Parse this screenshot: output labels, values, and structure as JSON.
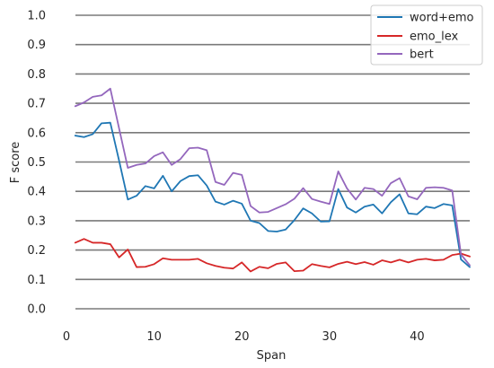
{
  "chart_data": {
    "type": "line",
    "title": "",
    "xlabel": "Span",
    "ylabel": "F score",
    "xlim": [
      0,
      46
    ],
    "ylim": [
      0,
      1.0
    ],
    "xticks": [
      0,
      10,
      20,
      30,
      40
    ],
    "yticks": [
      0.0,
      0.1,
      0.2,
      0.3,
      0.4,
      0.5,
      0.6,
      0.7,
      0.8,
      0.9,
      1.0
    ],
    "xtick_labels": [
      "0",
      "10",
      "20",
      "30",
      "40"
    ],
    "ytick_labels": [
      "0.0",
      "0.1",
      "0.2",
      "0.3",
      "0.4",
      "0.5",
      "0.6",
      "0.7",
      "0.8",
      "0.9",
      "1.0"
    ],
    "grid": "horizontal",
    "legend_position": "top-right",
    "x": [
      1,
      2,
      3,
      4,
      5,
      6,
      7,
      8,
      9,
      10,
      11,
      12,
      13,
      14,
      15,
      16,
      17,
      18,
      19,
      20,
      21,
      22,
      23,
      24,
      25,
      26,
      27,
      28,
      29,
      30,
      31,
      32,
      33,
      34,
      35,
      36,
      37,
      38,
      39,
      40,
      41,
      42,
      43,
      44,
      45,
      46
    ],
    "series": [
      {
        "name": "word+emo",
        "color": "#1f77b4",
        "values": [
          0.59,
          0.585,
          0.595,
          0.632,
          0.634,
          0.505,
          0.372,
          0.385,
          0.418,
          0.41,
          0.453,
          0.4,
          0.435,
          0.452,
          0.455,
          0.42,
          0.365,
          0.355,
          0.368,
          0.358,
          0.3,
          0.292,
          0.265,
          0.263,
          0.27,
          0.302,
          0.342,
          0.325,
          0.297,
          0.298,
          0.408,
          0.345,
          0.328,
          0.348,
          0.355,
          0.325,
          0.363,
          0.39,
          0.325,
          0.322,
          0.348,
          0.343,
          0.357,
          0.352,
          0.168,
          0.142
        ]
      },
      {
        "name": "emo_lex",
        "color": "#d62728",
        "values": [
          0.225,
          0.238,
          0.225,
          0.225,
          0.22,
          0.175,
          0.202,
          0.142,
          0.143,
          0.152,
          0.172,
          0.167,
          0.167,
          0.167,
          0.17,
          0.155,
          0.146,
          0.14,
          0.137,
          0.158,
          0.127,
          0.143,
          0.138,
          0.153,
          0.158,
          0.128,
          0.13,
          0.152,
          0.146,
          0.141,
          0.153,
          0.16,
          0.152,
          0.159,
          0.15,
          0.165,
          0.158,
          0.167,
          0.158,
          0.167,
          0.17,
          0.165,
          0.167,
          0.183,
          0.188,
          0.178
        ]
      },
      {
        "name": "bert",
        "color": "#9467bd",
        "values": [
          0.69,
          0.703,
          0.722,
          0.727,
          0.75,
          0.615,
          0.48,
          0.49,
          0.495,
          0.52,
          0.533,
          0.49,
          0.51,
          0.547,
          0.549,
          0.54,
          0.432,
          0.422,
          0.463,
          0.456,
          0.35,
          0.328,
          0.33,
          0.343,
          0.356,
          0.375,
          0.411,
          0.374,
          0.365,
          0.357,
          0.468,
          0.41,
          0.372,
          0.412,
          0.408,
          0.385,
          0.428,
          0.445,
          0.383,
          0.373,
          0.412,
          0.414,
          0.412,
          0.403,
          0.185,
          0.148
        ]
      }
    ]
  }
}
